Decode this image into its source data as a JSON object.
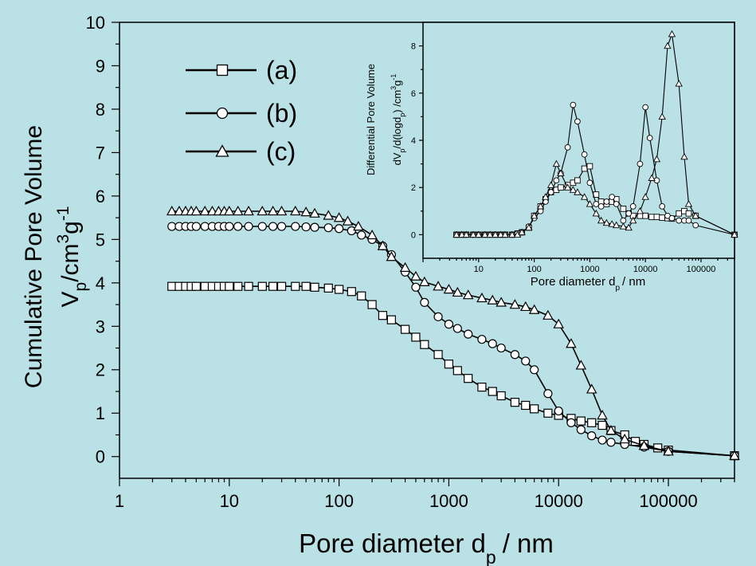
{
  "chart_data": [
    {
      "type": "scatter",
      "role": "main",
      "xlabel": "Pore diameter d",
      "xlabel_sub": "p",
      "xlabel_unit": "/ nm",
      "ylabel_line1": "Cumulative Pore Volume",
      "ylabel_line2": {
        "main": "V",
        "sub": "p",
        "unit": "/cm",
        "sup1": "3",
        "mid": "g",
        "sup2": "-1"
      },
      "x_scale": "log",
      "xlim": [
        1,
        400000
      ],
      "ylim": [
        -0.5,
        10
      ],
      "x_ticks": [
        {
          "value": 1,
          "label": "1"
        },
        {
          "value": 10,
          "label": "10"
        },
        {
          "value": 100,
          "label": "100"
        },
        {
          "value": 1000,
          "label": "1000"
        },
        {
          "value": 10000,
          "label": "10000"
        },
        {
          "value": 100000,
          "label": "100000"
        }
      ],
      "y_ticks": [
        {
          "value": 0,
          "label": "0"
        },
        {
          "value": 1,
          "label": "1"
        },
        {
          "value": 2,
          "label": "2"
        },
        {
          "value": 3,
          "label": "3"
        },
        {
          "value": 4,
          "label": "4"
        },
        {
          "value": 5,
          "label": "5"
        },
        {
          "value": 6,
          "label": "6"
        },
        {
          "value": 7,
          "label": "7"
        },
        {
          "value": 8,
          "label": "8"
        },
        {
          "value": 9,
          "label": "9"
        },
        {
          "value": 10,
          "label": "10"
        }
      ],
      "legend_position": "top-left",
      "series": [
        {
          "name": "(a)",
          "marker": "square",
          "x": [
            3,
            3.5,
            4,
            4.5,
            5,
            6,
            7,
            8,
            9,
            10,
            12,
            15,
            20,
            25,
            30,
            40,
            50,
            60,
            80,
            100,
            130,
            160,
            200,
            250,
            300,
            400,
            500,
            600,
            800,
            1000,
            1200,
            1500,
            2000,
            2500,
            3000,
            4000,
            5000,
            6000,
            8000,
            10000,
            13000,
            16000,
            20000,
            25000,
            30000,
            40000,
            50000,
            60000,
            80000,
            100000,
            400000
          ],
          "y": [
            3.92,
            3.92,
            3.92,
            3.92,
            3.92,
            3.92,
            3.92,
            3.92,
            3.92,
            3.92,
            3.92,
            3.92,
            3.92,
            3.92,
            3.92,
            3.92,
            3.92,
            3.9,
            3.88,
            3.85,
            3.8,
            3.7,
            3.5,
            3.25,
            3.15,
            2.93,
            2.75,
            2.58,
            2.35,
            2.13,
            1.98,
            1.8,
            1.6,
            1.5,
            1.4,
            1.25,
            1.18,
            1.1,
            1.0,
            0.95,
            0.88,
            0.82,
            0.78,
            0.72,
            0.6,
            0.5,
            0.35,
            0.28,
            0.2,
            0.15,
            0.02
          ]
        },
        {
          "name": "(b)",
          "marker": "circle",
          "x": [
            3,
            3.5,
            4,
            4.5,
            5,
            6,
            7,
            8,
            9,
            10,
            12,
            15,
            20,
            25,
            30,
            40,
            50,
            60,
            80,
            100,
            130,
            160,
            200,
            250,
            300,
            400,
            500,
            600,
            800,
            1000,
            1200,
            1500,
            2000,
            2500,
            3000,
            4000,
            5000,
            6000,
            8000,
            10000,
            13000,
            16000,
            20000,
            25000,
            30000,
            40000,
            60000,
            100000,
            400000
          ],
          "y": [
            5.3,
            5.3,
            5.3,
            5.3,
            5.3,
            5.3,
            5.3,
            5.3,
            5.3,
            5.3,
            5.3,
            5.3,
            5.3,
            5.3,
            5.3,
            5.3,
            5.29,
            5.28,
            5.27,
            5.25,
            5.2,
            5.1,
            5.0,
            4.85,
            4.65,
            4.25,
            3.9,
            3.55,
            3.22,
            3.05,
            2.95,
            2.82,
            2.7,
            2.6,
            2.5,
            2.35,
            2.2,
            2.0,
            1.45,
            1.05,
            0.78,
            0.62,
            0.48,
            0.38,
            0.33,
            0.28,
            0.22,
            0.12,
            0.02
          ]
        },
        {
          "name": "(c)",
          "marker": "triangle",
          "x": [
            3,
            3.5,
            4,
            4.5,
            5,
            6,
            7,
            8,
            9,
            10,
            12,
            15,
            20,
            25,
            30,
            40,
            50,
            60,
            80,
            100,
            120,
            150,
            200,
            250,
            300,
            400,
            500,
            600,
            800,
            1000,
            1200,
            1500,
            2000,
            2500,
            3000,
            4000,
            5000,
            6000,
            8000,
            10000,
            13000,
            16000,
            20000,
            25000,
            30000,
            40000,
            60000,
            100000,
            400000
          ],
          "y": [
            5.65,
            5.65,
            5.65,
            5.65,
            5.65,
            5.65,
            5.65,
            5.65,
            5.65,
            5.65,
            5.65,
            5.65,
            5.65,
            5.65,
            5.65,
            5.65,
            5.63,
            5.6,
            5.55,
            5.5,
            5.42,
            5.3,
            5.1,
            4.85,
            4.6,
            4.35,
            4.15,
            4.02,
            3.92,
            3.85,
            3.78,
            3.72,
            3.65,
            3.6,
            3.55,
            3.5,
            3.45,
            3.38,
            3.25,
            3.05,
            2.6,
            2.1,
            1.55,
            0.95,
            0.6,
            0.4,
            0.25,
            0.12,
            0.02
          ]
        }
      ]
    },
    {
      "type": "scatter",
      "role": "inset",
      "xlabel": "Pore diameter d",
      "xlabel_sub": "p",
      "xlabel_unit": "/ nm",
      "ylabel_line1": "Differential Pore Volume",
      "ylabel_line2_text": "dV",
      "ylabel_line2_rest": "/d(logd",
      "ylabel_line2_tail": ") /cm",
      "ylabel_sup1": "3",
      "ylabel_g": "g",
      "ylabel_sup2": "-1",
      "ylabel_sub": "p",
      "x_scale": "log",
      "xlim": [
        1,
        400000
      ],
      "ylim": [
        -1,
        9
      ],
      "x_ticks": [
        {
          "value": 10,
          "label": "10"
        },
        {
          "value": 100,
          "label": "100"
        },
        {
          "value": 1000,
          "label": "1000"
        },
        {
          "value": 10000,
          "label": "10000"
        },
        {
          "value": 100000,
          "label": "100000"
        }
      ],
      "y_ticks": [
        {
          "value": 0,
          "label": "0"
        },
        {
          "value": 2,
          "label": "2"
        },
        {
          "value": 4,
          "label": "4"
        },
        {
          "value": 6,
          "label": "6"
        },
        {
          "value": 8,
          "label": "8"
        }
      ],
      "series": [
        {
          "name": "(a)",
          "marker": "square",
          "x": [
            4,
            5,
            6,
            8,
            10,
            13,
            16,
            20,
            25,
            30,
            40,
            50,
            60,
            80,
            100,
            130,
            160,
            200,
            250,
            300,
            400,
            500,
            600,
            800,
            1000,
            1300,
            1600,
            2000,
            2500,
            3000,
            4000,
            5000,
            6000,
            8000,
            10000,
            13000,
            16000,
            20000,
            25000,
            30000,
            40000,
            50000,
            60000,
            80000,
            400000
          ],
          "y": [
            0,
            0,
            0,
            0,
            0,
            0,
            0,
            0,
            0,
            0,
            0,
            0.05,
            0.1,
            0.3,
            0.8,
            1.2,
            1.5,
            1.8,
            1.9,
            2.0,
            2.1,
            2.2,
            2.3,
            2.8,
            2.9,
            1.7,
            1.4,
            1.3,
            1.4,
            1.5,
            1.1,
            0.9,
            0.8,
            0.8,
            0.8,
            0.75,
            0.75,
            0.72,
            0.7,
            0.68,
            0.9,
            1.0,
            0.9,
            0.8,
            0
          ]
        },
        {
          "name": "(b)",
          "marker": "circle",
          "x": [
            4,
            5,
            6,
            8,
            10,
            13,
            16,
            20,
            25,
            30,
            40,
            50,
            60,
            80,
            100,
            130,
            160,
            200,
            250,
            300,
            400,
            500,
            600,
            800,
            1000,
            1300,
            1600,
            2000,
            2500,
            3000,
            4000,
            5000,
            6000,
            8000,
            10000,
            12000,
            16000,
            20000,
            25000,
            30000,
            40000,
            50000,
            60000,
            80000,
            400000
          ],
          "y": [
            0,
            0,
            0,
            0,
            0,
            0,
            0,
            0,
            0,
            0,
            0,
            0.05,
            0.1,
            0.35,
            0.7,
            1.0,
            1.4,
            1.8,
            2.3,
            2.6,
            3.7,
            5.5,
            4.8,
            3.4,
            2.2,
            1.3,
            1.2,
            1.4,
            1.6,
            1.3,
            0.6,
            0.9,
            1.2,
            3.0,
            5.4,
            4.1,
            2.3,
            1.2,
            0.8,
            0.7,
            0.6,
            0.6,
            0.6,
            0.4,
            0
          ]
        },
        {
          "name": "(c)",
          "marker": "triangle",
          "x": [
            4,
            5,
            6,
            8,
            10,
            13,
            16,
            20,
            25,
            30,
            40,
            50,
            60,
            80,
            100,
            130,
            160,
            200,
            250,
            300,
            400,
            500,
            600,
            800,
            1000,
            1300,
            1600,
            2000,
            2500,
            3000,
            4000,
            5000,
            6000,
            8000,
            10000,
            13000,
            16000,
            20000,
            25000,
            30000,
            40000,
            50000,
            60000,
            80000,
            400000
          ],
          "y": [
            0,
            0,
            0,
            0,
            0,
            0,
            0,
            0,
            0,
            0,
            0,
            0,
            0.1,
            0.3,
            0.8,
            1.2,
            1.6,
            2.1,
            3.0,
            2.6,
            2.0,
            1.9,
            1.8,
            1.6,
            1.3,
            0.9,
            0.6,
            0.5,
            0.45,
            0.4,
            0.35,
            0.3,
            0.6,
            1.0,
            1.6,
            2.4,
            3.2,
            5.0,
            8.0,
            8.5,
            6.4,
            3.3,
            1.3,
            0.8,
            0
          ]
        }
      ]
    }
  ]
}
